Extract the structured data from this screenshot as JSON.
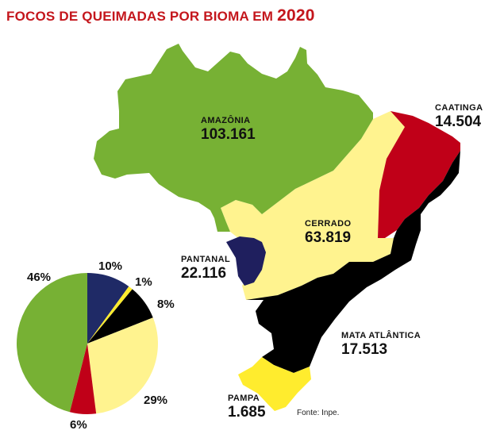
{
  "title": {
    "text": "FOCOS DE QUEIMADAS POR BIOMA EM ",
    "year": "2020"
  },
  "biomes": {
    "amazonia": {
      "name": "AMAZÔNIA",
      "value": "103.161",
      "color": "#77b134"
    },
    "caatinga": {
      "name": "CAATINGA",
      "value": "14.504",
      "color": "#c00018"
    },
    "cerrado": {
      "name": "CERRADO",
      "value": "63.819",
      "color": "#fff38f"
    },
    "pantanal": {
      "name": "PANTANAL",
      "value": "22.116",
      "color": "#1f1f5e"
    },
    "mata_atlantica": {
      "name": "MATA ATLÂNTICA",
      "value": "17.513",
      "color": "#000000"
    },
    "pampa": {
      "name": "PAMPA",
      "value": "1.685",
      "color": "#ffec2e"
    }
  },
  "source": "Fonte: Inpe.",
  "chart_data": {
    "type": "pie",
    "slices": [
      {
        "biome": "Amazônia",
        "label": "46%",
        "value": 46,
        "color": "#77b134"
      },
      {
        "biome": "Pantanal",
        "label": "10%",
        "value": 10,
        "color": "#1f2a66"
      },
      {
        "biome": "Pampa",
        "label": "1%",
        "value": 1,
        "color": "#ffec2e"
      },
      {
        "biome": "Mata Atlântica",
        "label": "8%",
        "value": 8,
        "color": "#000000"
      },
      {
        "biome": "Cerrado",
        "label": "29%",
        "value": 29,
        "color": "#fff38f"
      },
      {
        "biome": "Caatinga",
        "label": "6%",
        "value": 6,
        "color": "#c00018"
      }
    ]
  }
}
